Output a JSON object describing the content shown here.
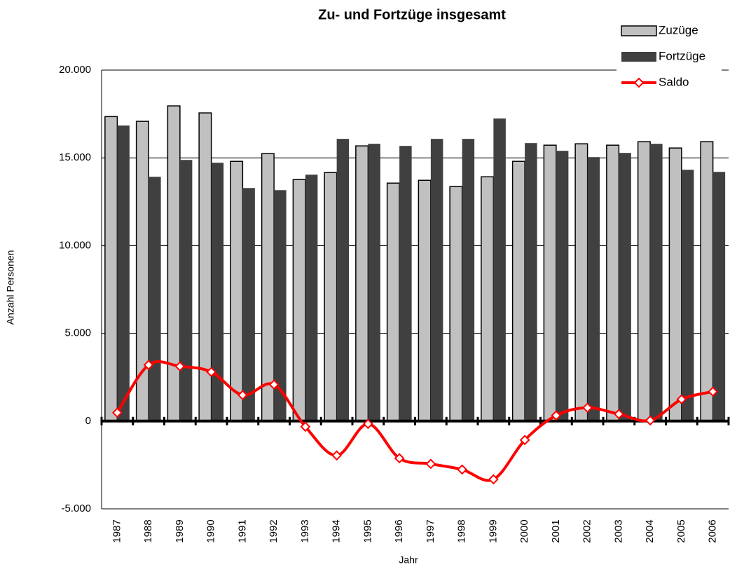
{
  "chart_data": {
    "type": "bar_line",
    "title": "Zu- und Fortzüge insgesamt",
    "xlabel": "Jahr",
    "ylabel": "Anzahl Personen",
    "categories": [
      "1987",
      "1988",
      "1989",
      "1990",
      "1991",
      "1992",
      "1993",
      "1994",
      "1995",
      "1996",
      "1997",
      "1998",
      "1999",
      "2000",
      "2001",
      "2002",
      "2003",
      "2004",
      "2005",
      "2006"
    ],
    "series": [
      {
        "name": "Zuzüge",
        "kind": "bar",
        "color": "#c0c0c0",
        "values": [
          17350,
          17080,
          17960,
          17560,
          14800,
          15240,
          13760,
          14160,
          15680,
          13560,
          13720,
          13360,
          13920,
          14800,
          15720,
          15800,
          15720,
          15920,
          15560,
          15920
        ]
      },
      {
        "name": "Fortzüge",
        "kind": "bar",
        "color": "#404040",
        "values": [
          16840,
          13920,
          14880,
          14720,
          13280,
          13160,
          14040,
          16080,
          15800,
          15680,
          16080,
          16080,
          17240,
          15840,
          15400,
          15040,
          15280,
          15800,
          14320,
          14200
        ]
      },
      {
        "name": "Saldo",
        "kind": "line",
        "color": "#ff0000",
        "values": [
          480,
          3200,
          3120,
          2800,
          1480,
          2080,
          -320,
          -1960,
          -160,
          -2120,
          -2440,
          -2760,
          -3320,
          -1080,
          320,
          760,
          400,
          40,
          1240,
          1680
        ]
      }
    ],
    "ylim": [
      -5000,
      20000
    ],
    "yticks": [
      {
        "value": -5000,
        "label": "-5.000"
      },
      0,
      {
        "value": 5000,
        "label": "5.000"
      },
      {
        "value": 10000,
        "label": "10.000"
      },
      {
        "value": 15000,
        "label": "15.000"
      },
      {
        "value": 20000,
        "label": "20.000"
      }
    ],
    "grid": true,
    "legend": "top-right"
  }
}
